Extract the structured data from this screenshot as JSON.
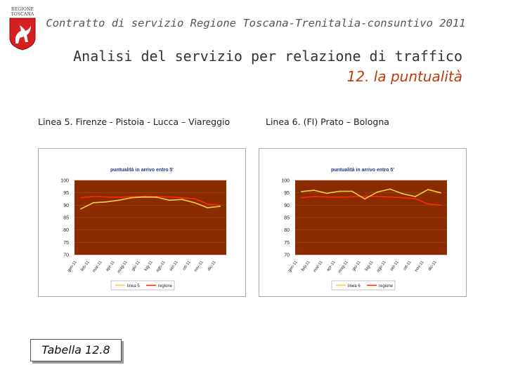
{
  "header": {
    "logo_lines": [
      "REGIONE",
      "TOSCANA"
    ],
    "title": "Contratto di servizio Regione Toscana-Trenitalia-consuntivo 2011"
  },
  "main": {
    "title": "Analisi del servizio per relazione di traffico",
    "subtitle": "12. la puntualità"
  },
  "table_label": "Tabella 12.8",
  "colors": {
    "plot_bg": "#8b2b00",
    "linea": "#f0d040",
    "regione": "#ff2a00",
    "accent": "#c03a0e"
  },
  "chart_data": [
    {
      "type": "line",
      "caption": "Linea 5. Firenze - Pistoia - Lucca – Viareggio",
      "title": "puntualità in arrivo entro 5'",
      "categories": [
        "gen-11",
        "feb-11",
        "mar-11",
        "apr-11",
        "mag-11",
        "giu-11",
        "lug-11",
        "ago-11",
        "set-11",
        "ott-11",
        "nov-11",
        "dic-11"
      ],
      "ylim": [
        70,
        100
      ],
      "yticks": [
        100,
        95,
        90,
        85,
        80,
        75,
        70
      ],
      "grid": true,
      "legend": "bottom",
      "series": [
        {
          "name": "linea 5",
          "color": "#f0d040",
          "values": [
            88.5,
            91,
            91.3,
            92,
            93,
            93.3,
            93.2,
            92,
            92.3,
            91,
            89,
            89.5
          ]
        },
        {
          "name": "regione",
          "color": "#ff2a00",
          "values": [
            93,
            93.5,
            93.3,
            93.2,
            93.4,
            93.6,
            93.5,
            93.3,
            93,
            92.6,
            90.5,
            90
          ]
        }
      ]
    },
    {
      "type": "line",
      "caption": "Linea 6. (FI) Prato – Bologna",
      "title": "puntualità in arrivo entro 5'",
      "categories": [
        "gen-11",
        "feb-11",
        "mar-11",
        "apr-11",
        "mag-11",
        "giu-11",
        "lug-11",
        "ago-11",
        "set-11",
        "ott-11",
        "nov-11",
        "dic-11"
      ],
      "ylim": [
        70,
        100
      ],
      "yticks": [
        100,
        95,
        90,
        85,
        80,
        75,
        70
      ],
      "grid": true,
      "legend": "bottom",
      "series": [
        {
          "name": "linea 6",
          "color": "#f0d040",
          "values": [
            95.5,
            96,
            94.8,
            95.6,
            95.6,
            92.5,
            95.3,
            96.5,
            94.6,
            93.5,
            96.3,
            95
          ]
        },
        {
          "name": "regione",
          "color": "#ff2a00",
          "values": [
            93,
            93.5,
            93.3,
            93.2,
            93.4,
            93.6,
            93.5,
            93.3,
            93,
            92.6,
            90.5,
            90
          ]
        }
      ]
    }
  ]
}
